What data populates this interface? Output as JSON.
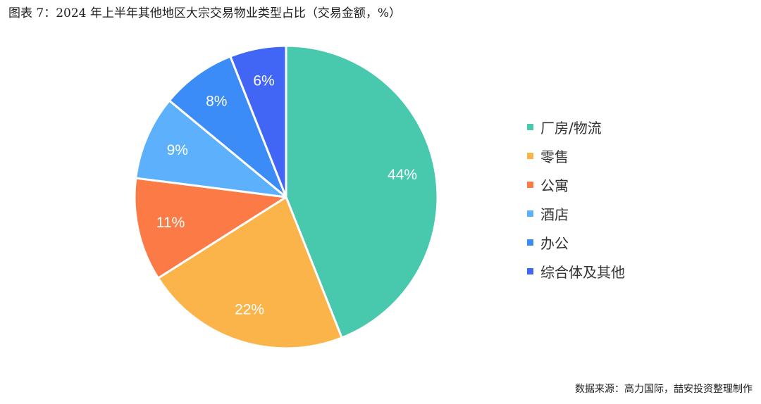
{
  "title": "图表 7：2024 年上半年其他地区大宗交易物业类型占比（交易金额，%）",
  "source": "数据来源：高力国际，喆安投资整理制作",
  "chart_data": {
    "type": "pie",
    "title": "图表 7：2024 年上半年其他地区大宗交易物业类型占比（交易金额，%）",
    "legend_position": "right",
    "slices": [
      {
        "name": "厂房/物流",
        "value": 44,
        "label": "44%",
        "color": "#48C9AE"
      },
      {
        "name": "零售",
        "value": 22,
        "label": "22%",
        "color": "#FBB44A"
      },
      {
        "name": "公寓",
        "value": 11,
        "label": "11%",
        "color": "#FC7A45"
      },
      {
        "name": "酒店",
        "value": 9,
        "label": "9%",
        "color": "#5DB1FC"
      },
      {
        "name": "办公",
        "value": 8,
        "label": "8%",
        "color": "#3C8CF7"
      },
      {
        "name": "综合体及其他",
        "value": 6,
        "label": "6%",
        "color": "#4166F5"
      }
    ]
  }
}
